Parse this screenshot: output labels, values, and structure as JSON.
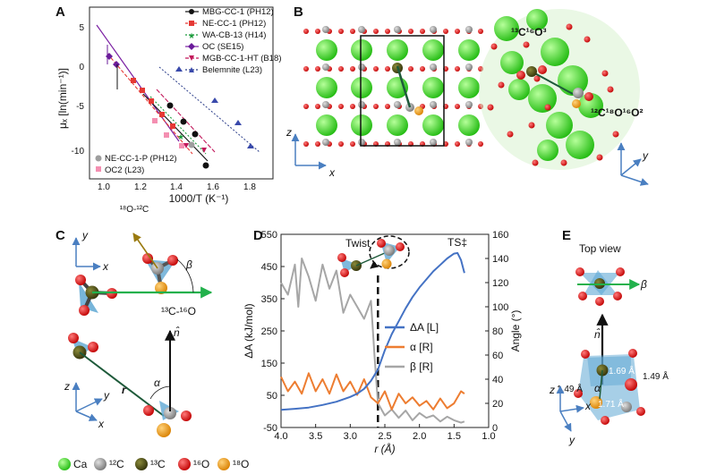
{
  "panels": {
    "a": "A",
    "b": "B",
    "c": "C",
    "d": "D",
    "e": "E"
  },
  "panel_a": {
    "ylabel": "μₓ [ln(min⁻¹)]",
    "xlabel": "1000/T (K⁻¹)",
    "sublabel": "¹⁸O-¹²C",
    "yticks": [
      "5",
      "0",
      "-5",
      "-10"
    ],
    "xticks": [
      "1.0",
      "1.2",
      "1.4",
      "1.6",
      "1.8"
    ],
    "legend_top": [
      "MBG-CC-1 (PH12)",
      "NE-CC-1 (PH12)",
      "WA-CB-13 (H14)",
      "OC (SE15)",
      "MGB-CC-1-HT (B18)",
      "Belemnite (L23)"
    ],
    "legend_bottom": [
      "NE-CC-1-P (PH12)",
      "OC2 (L23)"
    ]
  },
  "chart_data": {
    "type": "line",
    "title": "",
    "xlabel": "r (Å)",
    "ylabel_left": "ΔA (kJ/mol)",
    "ylabel_right": "Angle (°)",
    "xlim": [
      4.0,
      1.0
    ],
    "ylim_left": [
      -50,
      550
    ],
    "ylim_right": [
      0,
      160
    ],
    "xticks": [
      "4.0",
      "3.5",
      "3.0",
      "2.5",
      "2.0",
      "1.5",
      "1.0"
    ],
    "yticks_left": [
      "550",
      "450",
      "350",
      "250",
      "150",
      "50",
      "-50"
    ],
    "yticks_right": [
      "160",
      "140",
      "120",
      "100",
      "80",
      "60",
      "40",
      "20",
      "0"
    ],
    "twist_r": 2.6,
    "series": [
      {
        "name": "ΔA [L]",
        "axis": "left",
        "color": "#4472c4",
        "x": [
          4.0,
          3.8,
          3.6,
          3.4,
          3.2,
          3.0,
          2.9,
          2.8,
          2.7,
          2.6,
          2.5,
          2.4,
          2.3,
          2.2,
          2.1,
          2.0,
          1.9,
          1.8,
          1.7,
          1.6,
          1.5,
          1.45,
          1.4,
          1.35
        ],
        "y": [
          5,
          8,
          12,
          20,
          30,
          45,
          55,
          70,
          95,
          130,
          190,
          240,
          280,
          320,
          355,
          385,
          410,
          435,
          455,
          475,
          490,
          492,
          470,
          430
        ]
      },
      {
        "name": "α [R]",
        "axis": "right",
        "color": "#ed7d31",
        "x": [
          4.0,
          3.9,
          3.8,
          3.7,
          3.6,
          3.5,
          3.4,
          3.3,
          3.2,
          3.1,
          3.0,
          2.9,
          2.8,
          2.7,
          2.6,
          2.5,
          2.4,
          2.3,
          2.2,
          2.1,
          2.0,
          1.9,
          1.8,
          1.7,
          1.6,
          1.5,
          1.4,
          1.35
        ],
        "y": [
          42,
          30,
          38,
          28,
          45,
          30,
          40,
          28,
          44,
          30,
          38,
          27,
          40,
          25,
          20,
          30,
          15,
          28,
          20,
          25,
          18,
          22,
          15,
          24,
          16,
          20,
          30,
          28
        ]
      },
      {
        "name": "β [R]",
        "axis": "right",
        "color": "#a6a6a6",
        "x": [
          4.0,
          3.9,
          3.8,
          3.75,
          3.7,
          3.6,
          3.5,
          3.4,
          3.3,
          3.2,
          3.1,
          3.0,
          2.9,
          2.8,
          2.7,
          2.65,
          2.6,
          2.5,
          2.4,
          2.3,
          2.2,
          2.1,
          2.0,
          1.9,
          1.8,
          1.7,
          1.6,
          1.5,
          1.4,
          1.35
        ],
        "y": [
          120,
          110,
          135,
          100,
          140,
          125,
          105,
          135,
          115,
          130,
          95,
          110,
          100,
          90,
          105,
          60,
          20,
          10,
          15,
          8,
          14,
          6,
          12,
          8,
          10,
          5,
          9,
          6,
          4,
          5
        ]
      }
    ]
  },
  "panel_b": {
    "x_axis": "x",
    "z_axis": "z",
    "y_axis": "y",
    "label1": "¹³C¹⁶O³",
    "label2": "¹²C¹⁸O¹⁶O²"
  },
  "panel_c": {
    "beta": "β",
    "alpha": "α",
    "r": "r",
    "n": "n̂",
    "bond": "¹³C-¹⁶O",
    "x": "x",
    "y": "y",
    "z": "z"
  },
  "panel_d": {
    "twist": "Twist",
    "ts": "TS‡"
  },
  "panel_e": {
    "title": "Top view",
    "beta": "β",
    "alpha": "α",
    "n": "n̂",
    "d1": "1.69 Å",
    "d2": "1.49 Å",
    "d3": "1.49 Å",
    "d4": "1.71 Å",
    "x": "x",
    "y": "y",
    "z": "z"
  },
  "atom_legend": [
    {
      "label": "Ca",
      "color": "#33dd22"
    },
    {
      "label": "¹²C",
      "color": "#999999"
    },
    {
      "label": "¹³C",
      "color": "#4b4a12"
    },
    {
      "label": "¹⁶O",
      "color": "#e01010"
    },
    {
      "label": "¹⁸O",
      "color": "#f0a020"
    }
  ],
  "colors": {
    "accent": "#4472c4",
    "ca": "#33dd22",
    "o16": "#e01010",
    "o18": "#f0a020",
    "c12": "#999999",
    "c13": "#4b4a12"
  }
}
